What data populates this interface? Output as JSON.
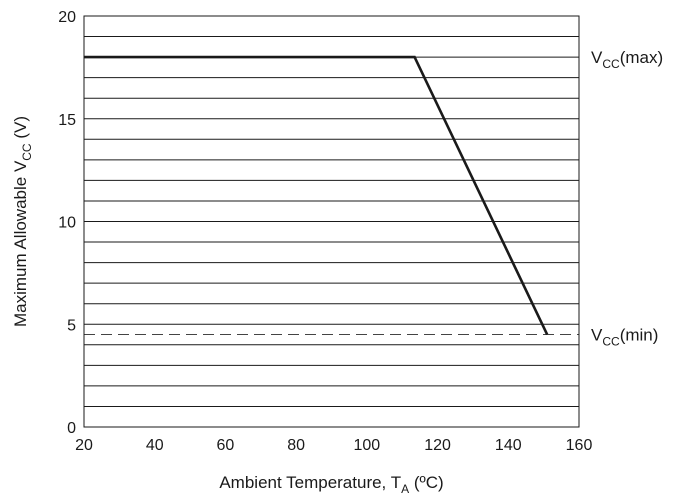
{
  "chart_data": {
    "type": "line",
    "title": "",
    "xlabel": {
      "main": "Ambient Temperature, T",
      "sub": "A",
      "suffix": " (ºC)"
    },
    "ylabel": {
      "main": "Maximum Allowable V",
      "sub": "CC",
      "suffix": " (V)"
    },
    "xlim": [
      20,
      160
    ],
    "ylim": [
      0,
      20
    ],
    "xticks": [
      20,
      40,
      60,
      80,
      100,
      120,
      140,
      160
    ],
    "yticks": [
      0,
      5,
      10,
      15,
      20
    ],
    "grid_y_step": 1,
    "grid": true,
    "series": [
      {
        "x": [
          20,
          113.5,
          151
        ],
        "y": [
          18,
          18,
          4.5
        ],
        "color": "#1a1a1a"
      }
    ],
    "reference_lines": [
      {
        "y": 4.5,
        "style": "dashed",
        "color": "#444444"
      }
    ],
    "annotations": [
      {
        "main": "V",
        "sub": "CC",
        "suffix": "(max)",
        "y": 18
      },
      {
        "main": "V",
        "sub": "CC",
        "suffix": "(min)",
        "y": 4.5
      }
    ]
  }
}
